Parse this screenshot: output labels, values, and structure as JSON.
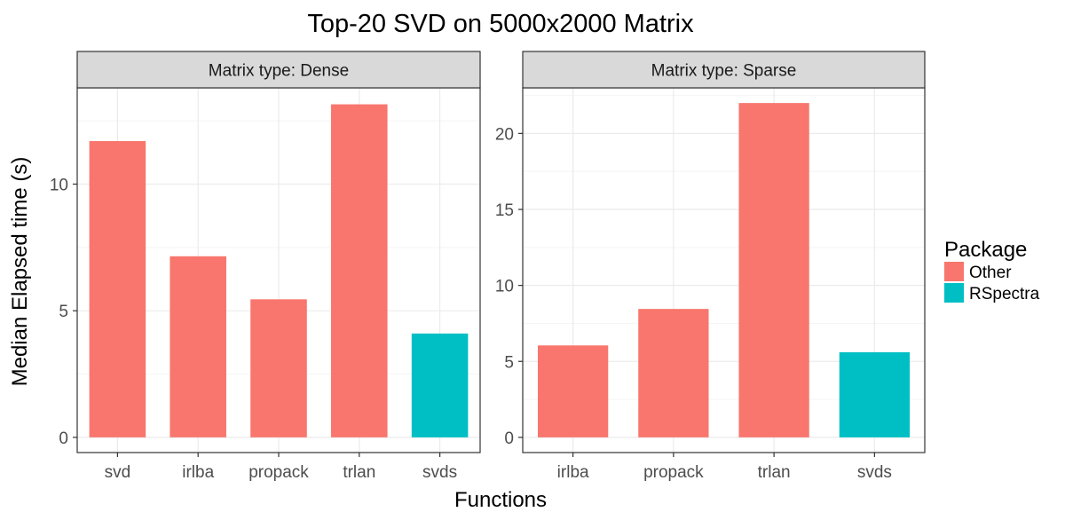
{
  "colors": {
    "Other": "#F8766D",
    "RSpectra": "#00BFC4",
    "strip_fill": "#D9D9D9",
    "grid_major": "#EBEBEB",
    "grid_minor": "#F5F5F5",
    "panel_border": "#333333"
  },
  "chart_data": {
    "type": "bar",
    "title": "Top-20 SVD on 5000x2000 Matrix",
    "xlabel": "Functions",
    "ylabel": "Median Elapsed time (s)",
    "grid": true,
    "legend": {
      "title": "Package",
      "position": "right",
      "entries": [
        "Other",
        "RSpectra"
      ]
    },
    "panels": [
      {
        "strip": "Matrix type: Dense",
        "categories": [
          "svd",
          "irlba",
          "propack",
          "trlan",
          "svds"
        ],
        "values": [
          11.7,
          7.15,
          5.45,
          13.15,
          4.1
        ],
        "package": [
          "Other",
          "Other",
          "Other",
          "Other",
          "RSpectra"
        ],
        "ylim": [
          -0.6,
          13.8
        ],
        "yticks": [
          0,
          5,
          10
        ]
      },
      {
        "strip": "Matrix type: Sparse",
        "categories": [
          "irlba",
          "propack",
          "trlan",
          "svds"
        ],
        "values": [
          6.05,
          8.45,
          22.0,
          5.6
        ],
        "package": [
          "Other",
          "Other",
          "Other",
          "RSpectra"
        ],
        "ylim": [
          -1.0,
          23.0
        ],
        "yticks": [
          0,
          5,
          10,
          15,
          20
        ]
      }
    ]
  }
}
